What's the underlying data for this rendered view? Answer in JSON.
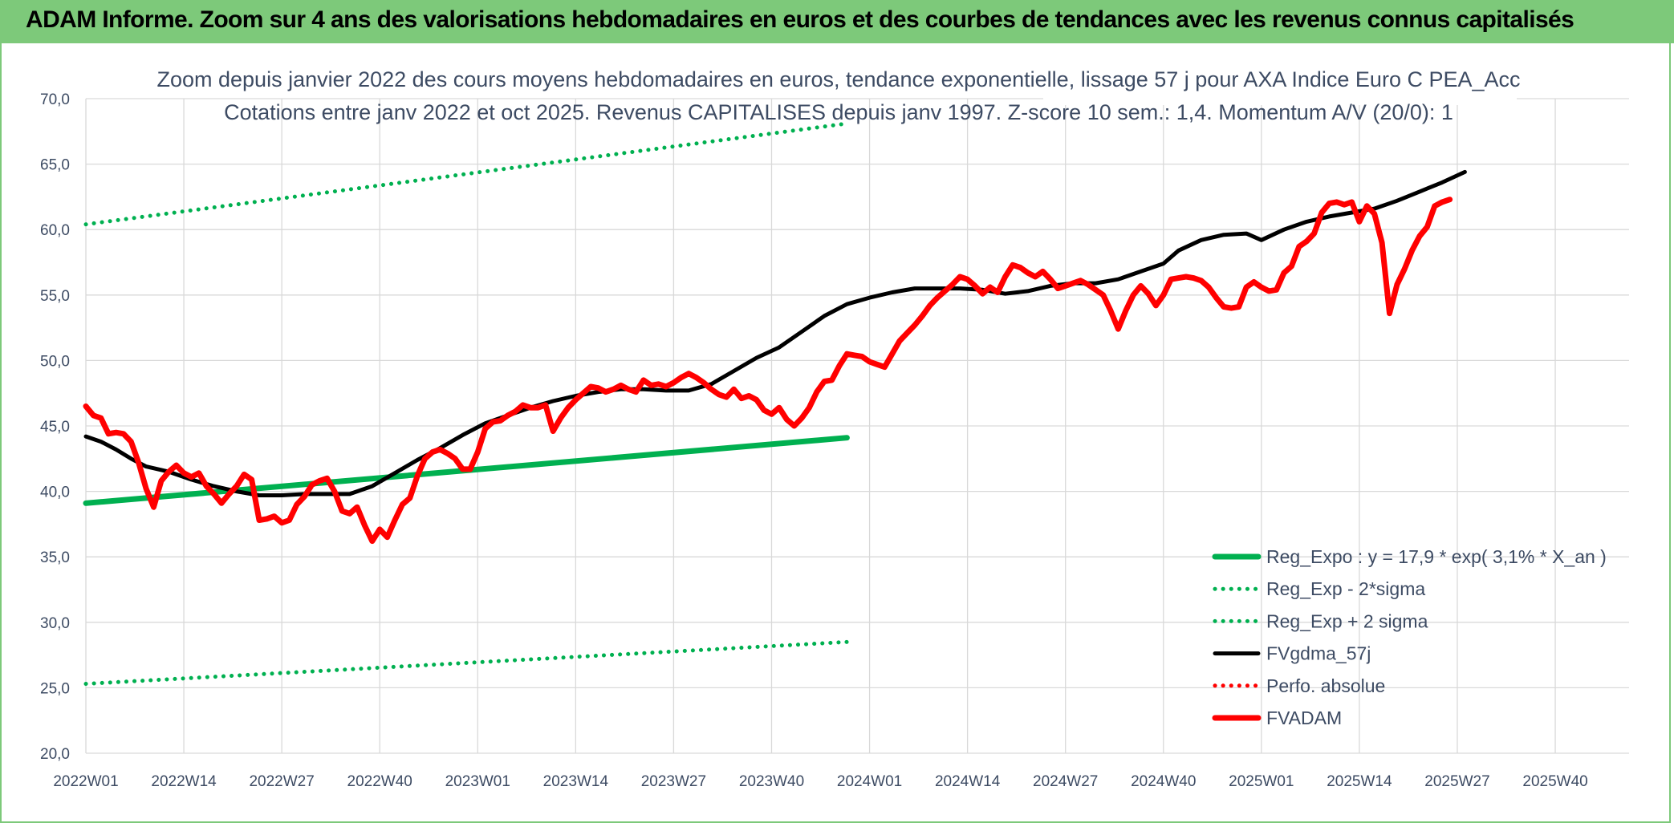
{
  "header": {
    "title": "ADAM Informe. Zoom sur 4 ans des valorisations hebdomadaires en euros et des courbes de tendances avec les revenus connus capitalisés"
  },
  "colors": {
    "banner": "#7dc97a",
    "reg_green": "#00b050",
    "fvadam_red": "#ff0000",
    "gdma_black": "#000000",
    "text": "#3d4b63",
    "grid": "#d9d9d9"
  },
  "chart_data": {
    "type": "line",
    "title": "Zoom depuis janvier 2022 des cours moyens hebdomadaires en euros, tendance exponentielle, lissage 57 j pour AXA Indice Euro C PEA_Acc",
    "subtitle": "Cotations entre janv 2022 et oct 2025. Revenus CAPITALISES depuis janv 1997. Z-score 10 sem.: 1,4. Momentum A/V (20/0): 1",
    "ylim": [
      20,
      70
    ],
    "y_ticks": [
      "70,0",
      "65,0",
      "60,0",
      "55,0",
      "50,0",
      "45,0",
      "40,0",
      "35,0",
      "30,0",
      "25,0",
      "20,0"
    ],
    "x_ticks": [
      "2022W01",
      "2022W14",
      "2022W27",
      "2022W40",
      "2023W01",
      "2023W14",
      "2023W27",
      "2023W40",
      "2024W01",
      "2024W14",
      "2024W27",
      "2024W40",
      "2025W01",
      "2025W14",
      "2025W27",
      "2025W40"
    ],
    "n_weeks": 203,
    "legend_position": "bottom-right",
    "series": [
      {
        "name": "Reg_Expo : y = 17,9 * exp( 3,1% *  X_an )",
        "style": "solid-thick",
        "color": "#00b050",
        "keypoints": [
          [
            0,
            39.1
          ],
          [
            202,
            44.1
          ]
        ]
      },
      {
        "name": "Reg_Exp - 2*sigma",
        "style": "dotted",
        "color": "#00b050",
        "keypoints": [
          [
            0,
            25.3
          ],
          [
            202,
            28.5
          ]
        ]
      },
      {
        "name": "Reg_Exp + 2 sigma",
        "style": "dotted",
        "color": "#00b050",
        "keypoints": [
          [
            0,
            60.4
          ],
          [
            202,
            68.1
          ]
        ]
      },
      {
        "name": "FVgdma_57j",
        "style": "solid",
        "color": "#000000",
        "keypoints": [
          [
            0,
            44.2
          ],
          [
            4,
            43.8
          ],
          [
            8,
            43.2
          ],
          [
            12,
            42.5
          ],
          [
            16,
            41.9
          ],
          [
            22,
            41.5
          ],
          [
            28,
            40.9
          ],
          [
            34,
            40.4
          ],
          [
            40,
            40.0
          ],
          [
            46,
            39.7
          ],
          [
            52,
            39.7
          ],
          [
            58,
            39.8
          ],
          [
            64,
            39.8
          ],
          [
            70,
            39.8
          ],
          [
            76,
            40.4
          ],
          [
            82,
            41.4
          ],
          [
            88,
            42.4
          ],
          [
            94,
            43.3
          ],
          [
            100,
            44.3
          ],
          [
            106,
            45.2
          ],
          [
            112,
            45.8
          ],
          [
            118,
            46.4
          ],
          [
            124,
            46.9
          ],
          [
            130,
            47.3
          ],
          [
            136,
            47.6
          ],
          [
            142,
            47.8
          ],
          [
            148,
            47.8
          ],
          [
            154,
            47.7
          ],
          [
            160,
            47.7
          ],
          [
            166,
            48.2
          ],
          [
            172,
            49.2
          ],
          [
            178,
            50.2
          ],
          [
            184,
            51.0
          ],
          [
            190,
            52.2
          ],
          [
            196,
            53.4
          ],
          [
            202,
            54.3
          ],
          [
            208,
            54.8
          ],
          [
            214,
            55.2
          ],
          [
            220,
            55.5
          ],
          [
            226,
            55.5
          ],
          [
            232,
            55.5
          ],
          [
            238,
            55.4
          ],
          [
            244,
            55.1
          ],
          [
            250,
            55.3
          ],
          [
            256,
            55.7
          ],
          [
            262,
            55.9
          ],
          [
            268,
            55.9
          ],
          [
            274,
            56.2
          ],
          [
            280,
            56.8
          ],
          [
            286,
            57.4
          ],
          [
            290,
            58.4
          ],
          [
            296,
            59.2
          ],
          [
            302,
            59.6
          ],
          [
            308,
            59.7
          ],
          [
            312,
            59.2
          ],
          [
            318,
            60.0
          ],
          [
            324,
            60.6
          ],
          [
            330,
            61.0
          ],
          [
            336,
            61.3
          ],
          [
            342,
            61.6
          ],
          [
            348,
            62.2
          ],
          [
            354,
            62.9
          ],
          [
            360,
            63.6
          ],
          [
            366,
            64.4
          ]
        ]
      },
      {
        "name": "Perfo. absolue",
        "style": "dotted",
        "color": "#ff0000",
        "keypoints": []
      },
      {
        "name": "FVADAM",
        "style": "solid-thick",
        "color": "#ff0000",
        "keypoints": [
          [
            0,
            46.5
          ],
          [
            2,
            45.8
          ],
          [
            4,
            45.6
          ],
          [
            6,
            44.4
          ],
          [
            8,
            44.5
          ],
          [
            10,
            44.4
          ],
          [
            12,
            43.8
          ],
          [
            14,
            42.2
          ],
          [
            16,
            40.2
          ],
          [
            18,
            38.8
          ],
          [
            20,
            40.8
          ],
          [
            22,
            41.5
          ],
          [
            24,
            42.0
          ],
          [
            26,
            41.4
          ],
          [
            28,
            41.1
          ],
          [
            30,
            41.4
          ],
          [
            32,
            40.4
          ],
          [
            34,
            39.8
          ],
          [
            36,
            39.1
          ],
          [
            38,
            39.8
          ],
          [
            40,
            40.4
          ],
          [
            42,
            41.3
          ],
          [
            44,
            40.9
          ],
          [
            46,
            37.8
          ],
          [
            48,
            37.9
          ],
          [
            50,
            38.1
          ],
          [
            52,
            37.6
          ],
          [
            54,
            37.8
          ],
          [
            56,
            39.0
          ],
          [
            58,
            39.6
          ],
          [
            60,
            40.5
          ],
          [
            62,
            40.8
          ],
          [
            64,
            41.0
          ],
          [
            66,
            40.0
          ],
          [
            68,
            38.5
          ],
          [
            70,
            38.3
          ],
          [
            72,
            38.8
          ],
          [
            74,
            37.4
          ],
          [
            76,
            36.2
          ],
          [
            78,
            37.1
          ],
          [
            80,
            36.5
          ],
          [
            82,
            37.8
          ],
          [
            84,
            39.0
          ],
          [
            86,
            39.5
          ],
          [
            88,
            41.2
          ],
          [
            90,
            42.5
          ],
          [
            92,
            43.0
          ],
          [
            94,
            43.2
          ],
          [
            96,
            42.9
          ],
          [
            98,
            42.5
          ],
          [
            100,
            41.7
          ],
          [
            102,
            41.7
          ],
          [
            104,
            43.0
          ],
          [
            106,
            44.8
          ],
          [
            108,
            45.3
          ],
          [
            110,
            45.4
          ],
          [
            112,
            45.8
          ],
          [
            114,
            46.1
          ],
          [
            116,
            46.6
          ],
          [
            118,
            46.4
          ],
          [
            120,
            46.4
          ],
          [
            122,
            46.6
          ],
          [
            124,
            44.6
          ],
          [
            126,
            45.6
          ],
          [
            128,
            46.4
          ],
          [
            130,
            47.0
          ],
          [
            132,
            47.5
          ],
          [
            134,
            48.0
          ],
          [
            136,
            47.9
          ],
          [
            138,
            47.6
          ],
          [
            140,
            47.8
          ],
          [
            142,
            48.1
          ],
          [
            144,
            47.8
          ],
          [
            146,
            47.6
          ],
          [
            148,
            48.5
          ],
          [
            150,
            48.1
          ],
          [
            152,
            48.2
          ],
          [
            154,
            48.0
          ],
          [
            156,
            48.3
          ],
          [
            158,
            48.7
          ],
          [
            160,
            49.0
          ],
          [
            162,
            48.7
          ],
          [
            164,
            48.3
          ],
          [
            166,
            47.8
          ],
          [
            168,
            47.4
          ],
          [
            170,
            47.2
          ],
          [
            172,
            47.8
          ],
          [
            174,
            47.1
          ],
          [
            176,
            47.3
          ],
          [
            178,
            47.0
          ],
          [
            180,
            46.2
          ],
          [
            182,
            45.9
          ],
          [
            184,
            46.4
          ],
          [
            186,
            45.5
          ],
          [
            188,
            45.0
          ],
          [
            190,
            45.6
          ],
          [
            192,
            46.4
          ],
          [
            194,
            47.6
          ],
          [
            196,
            48.4
          ],
          [
            198,
            48.5
          ],
          [
            200,
            49.6
          ],
          [
            202,
            50.5
          ],
          [
            204,
            50.4
          ],
          [
            206,
            50.3
          ],
          [
            208,
            49.9
          ],
          [
            210,
            49.7
          ],
          [
            212,
            49.5
          ],
          [
            214,
            50.5
          ],
          [
            216,
            51.5
          ],
          [
            218,
            52.1
          ],
          [
            220,
            52.7
          ],
          [
            222,
            53.4
          ],
          [
            224,
            54.2
          ],
          [
            226,
            54.8
          ],
          [
            228,
            55.3
          ],
          [
            230,
            55.8
          ],
          [
            232,
            56.4
          ],
          [
            234,
            56.2
          ],
          [
            236,
            55.7
          ],
          [
            238,
            55.1
          ],
          [
            240,
            55.6
          ],
          [
            242,
            55.2
          ],
          [
            244,
            56.4
          ],
          [
            246,
            57.3
          ],
          [
            248,
            57.1
          ],
          [
            250,
            56.7
          ],
          [
            252,
            56.4
          ],
          [
            254,
            56.8
          ],
          [
            256,
            56.2
          ],
          [
            258,
            55.5
          ],
          [
            260,
            55.7
          ],
          [
            262,
            55.9
          ],
          [
            264,
            56.1
          ],
          [
            266,
            55.8
          ],
          [
            268,
            55.4
          ],
          [
            270,
            55.0
          ],
          [
            272,
            53.8
          ],
          [
            274,
            52.4
          ],
          [
            276,
            53.8
          ],
          [
            278,
            55.0
          ],
          [
            280,
            55.7
          ],
          [
            282,
            55.1
          ],
          [
            284,
            54.2
          ],
          [
            286,
            55.0
          ],
          [
            288,
            56.2
          ],
          [
            290,
            56.3
          ],
          [
            292,
            56.4
          ],
          [
            294,
            56.3
          ],
          [
            296,
            56.1
          ],
          [
            298,
            55.6
          ],
          [
            300,
            54.8
          ],
          [
            302,
            54.1
          ],
          [
            304,
            54.0
          ],
          [
            306,
            54.1
          ],
          [
            308,
            55.6
          ],
          [
            310,
            56.0
          ],
          [
            312,
            55.6
          ],
          [
            314,
            55.3
          ],
          [
            316,
            55.4
          ],
          [
            318,
            56.7
          ],
          [
            320,
            57.2
          ],
          [
            322,
            58.7
          ],
          [
            324,
            59.1
          ],
          [
            326,
            59.7
          ],
          [
            328,
            61.3
          ],
          [
            330,
            62.0
          ],
          [
            332,
            62.1
          ],
          [
            334,
            61.9
          ],
          [
            336,
            62.1
          ],
          [
            338,
            60.6
          ],
          [
            340,
            61.8
          ],
          [
            342,
            61.2
          ],
          [
            344,
            59.0
          ],
          [
            346,
            53.6
          ],
          [
            348,
            55.8
          ],
          [
            350,
            57.0
          ],
          [
            352,
            58.4
          ],
          [
            354,
            59.5
          ],
          [
            356,
            60.2
          ],
          [
            358,
            61.8
          ],
          [
            360,
            62.1
          ],
          [
            362,
            62.3
          ]
        ]
      }
    ]
  }
}
